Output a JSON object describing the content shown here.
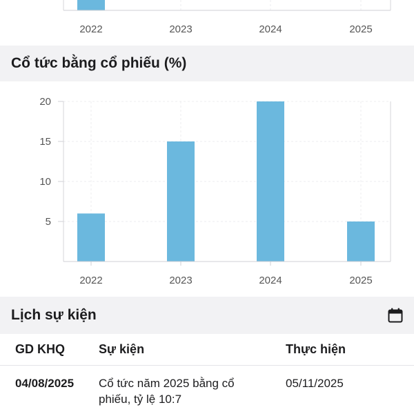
{
  "top_chart": {
    "categories": [
      "2022",
      "2023",
      "2024",
      "2025"
    ],
    "visible_bar_color": "#6bb8de"
  },
  "stock_dividend": {
    "title": "Cổ tức bằng cổ phiếu (%)",
    "chart_data": {
      "type": "bar",
      "title": "Cổ tức bằng cổ phiếu (%)",
      "categories": [
        "2022",
        "2023",
        "2024",
        "2025"
      ],
      "values": [
        6,
        15,
        20,
        5
      ],
      "yticks": [
        5,
        10,
        15,
        20
      ],
      "ylim": [
        0,
        20
      ],
      "xlabel": "",
      "ylabel": "",
      "grid": true,
      "bar_color": "#6bb8de"
    }
  },
  "events": {
    "title": "Lịch sự kiện",
    "icon": "calendar-icon",
    "columns": [
      "GD KHQ",
      "Sự kiện",
      "Thực hiện"
    ],
    "rows": [
      {
        "date": "04/08/2025",
        "event_line1": "Cổ tức năm 2025 bằng cổ",
        "event_line2": "phiếu, tỷ lệ 10:7",
        "exec_date": "05/11/2025"
      }
    ]
  }
}
